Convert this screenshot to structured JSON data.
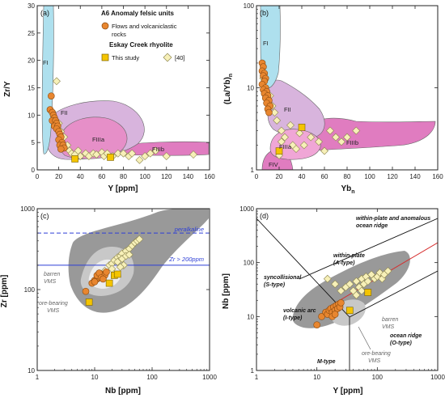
{
  "chart_data": [
    {
      "panel": "(a)",
      "type": "scatter",
      "xlabel": "Y [ppm]",
      "ylabel": "Zr/Y",
      "xlim": [
        0,
        160
      ],
      "ylim": [
        0,
        30
      ],
      "xticks": [
        0,
        20,
        40,
        60,
        80,
        100,
        120,
        140,
        160
      ],
      "yticks": [
        0,
        5,
        10,
        15,
        20,
        25,
        30
      ],
      "fields": [
        {
          "label": "FI",
          "color": "#aee0ee"
        },
        {
          "label": "FII",
          "color": "#d8b4dd"
        },
        {
          "label": "FIIIa",
          "color": "#e68fc8"
        },
        {
          "label": "FIIIb",
          "color": "#e07cc0"
        }
      ],
      "legend": {
        "group1_title": "A6 Anomaly felsic units",
        "group1_item": "Flows and volcaniclastic rocks",
        "group2_title": "Eskay Creek rhyolite",
        "group2_item1": "This study",
        "group2_item2": "[40]"
      },
      "series": [
        {
          "name": "Flows and volcaniclastic rocks",
          "marker": "circle",
          "color": "#e8862f",
          "points": [
            [
              13,
              13.5
            ],
            [
              12,
              11
            ],
            [
              14,
              10.5
            ],
            [
              15,
              10
            ],
            [
              16,
              9.5
            ],
            [
              14,
              9
            ],
            [
              17,
              9
            ],
            [
              18,
              8.5
            ],
            [
              16,
              8
            ],
            [
              19,
              8
            ],
            [
              18,
              7.5
            ],
            [
              20,
              7
            ],
            [
              21,
              6.5
            ],
            [
              22,
              6
            ],
            [
              20,
              5.5
            ],
            [
              23,
              5
            ],
            [
              21,
              4.5
            ],
            [
              24,
              4.5
            ],
            [
              25,
              4
            ],
            [
              22,
              3.8
            ]
          ]
        },
        {
          "name": "This study",
          "marker": "square",
          "color": "#f4c400",
          "points": [
            [
              35,
              2
            ],
            [
              68,
              2.3
            ]
          ]
        },
        {
          "name": "[40]",
          "marker": "diamond",
          "color": "#f7f0b8",
          "points": [
            [
              18,
              16.2
            ],
            [
              20,
              8.5
            ],
            [
              22,
              7
            ],
            [
              25,
              6
            ],
            [
              24,
              4
            ],
            [
              28,
              4.5
            ],
            [
              30,
              3.5
            ],
            [
              32,
              3
            ],
            [
              35,
              2.8
            ],
            [
              38,
              3.5
            ],
            [
              40,
              2.5
            ],
            [
              45,
              3
            ],
            [
              48,
              2.5
            ],
            [
              52,
              3
            ],
            [
              55,
              2.8
            ],
            [
              60,
              3.2
            ],
            [
              62,
              2.5
            ],
            [
              65,
              3
            ],
            [
              70,
              2.5
            ],
            [
              75,
              3
            ],
            [
              80,
              3
            ],
            [
              85,
              2.5
            ],
            [
              88,
              3
            ],
            [
              95,
              1.8
            ],
            [
              100,
              2.5
            ],
            [
              105,
              3
            ],
            [
              110,
              3.5
            ],
            [
              120,
              2.5
            ],
            [
              145,
              2.8
            ]
          ]
        }
      ]
    },
    {
      "panel": "(b)",
      "type": "scatter",
      "xlabel": "Yb",
      "xlabel_sub": "n",
      "ylabel": "(La/Yb)",
      "ylabel_sub": "n",
      "xlim": [
        0,
        160
      ],
      "ylim": [
        1,
        100
      ],
      "yscale": "log",
      "xticks": [
        0,
        20,
        40,
        60,
        80,
        100,
        120,
        140,
        160
      ],
      "yticks": [
        1,
        10,
        100
      ],
      "fields": [
        {
          "label": "FI",
          "color": "#aee0ee"
        },
        {
          "label": "FII",
          "color": "#d8b4dd"
        },
        {
          "label": "FIIIa",
          "color": "#f0a6d6"
        },
        {
          "label": "FIIIb",
          "color": "#e07cc0"
        },
        {
          "label": "FIV",
          "color": "#e07cc0"
        }
      ],
      "series": [
        {
          "name": "Flows and volcaniclastic rocks",
          "marker": "circle",
          "color": "#e8862f",
          "points": [
            [
              5,
              20
            ],
            [
              6,
              18
            ],
            [
              5,
              16
            ],
            [
              7,
              15
            ],
            [
              6,
              14
            ],
            [
              8,
              13
            ],
            [
              7,
              12
            ],
            [
              5,
              11
            ],
            [
              8,
              10
            ],
            [
              6,
              9.5
            ],
            [
              9,
              9
            ],
            [
              7,
              8.5
            ],
            [
              10,
              8
            ],
            [
              8,
              7.5
            ],
            [
              11,
              7
            ],
            [
              9,
              6.5
            ],
            [
              12,
              6
            ],
            [
              10,
              5.5
            ],
            [
              11,
              5
            ]
          ]
        },
        {
          "name": "This study",
          "marker": "square",
          "color": "#f4c400",
          "points": [
            [
              40,
              3.3
            ],
            [
              20,
              1.7
            ]
          ]
        },
        {
          "name": "[40]",
          "marker": "diamond",
          "color": "#f7f0b8",
          "points": [
            [
              6,
              13
            ],
            [
              8,
              10
            ],
            [
              12,
              8
            ],
            [
              14,
              6
            ],
            [
              16,
              5
            ],
            [
              18,
              4
            ],
            [
              22,
              3
            ],
            [
              25,
              2.5
            ],
            [
              30,
              3.5
            ],
            [
              32,
              2
            ],
            [
              35,
              1.8
            ],
            [
              38,
              2.8
            ],
            [
              42,
              2
            ],
            [
              48,
              2.5
            ],
            [
              55,
              2.2
            ],
            [
              60,
              1.7
            ],
            [
              65,
              3
            ],
            [
              70,
              2.5
            ],
            [
              75,
              2.2
            ],
            [
              80,
              2.5
            ],
            [
              88,
              3
            ],
            [
              20,
              1.5
            ],
            [
              22,
              2.2
            ]
          ]
        }
      ]
    },
    {
      "panel": "(c)",
      "type": "scatter",
      "xlabel": "Nb [ppm]",
      "ylabel": "Zr [ppm]",
      "xscale": "log",
      "yscale": "log",
      "xlim": [
        1,
        1000
      ],
      "ylim": [
        10,
        1000
      ],
      "xticks": [
        1,
        10,
        100,
        1000
      ],
      "yticks": [
        10,
        100,
        1000
      ],
      "annotations": {
        "peralkaline": "peralkaline",
        "zr_line": "Zr > 200ppm",
        "barren": "barren VMS",
        "ore": "ore-bearing VMS"
      },
      "reference_lines": [
        {
          "name": "peralkaline",
          "y": 500,
          "style": "dashed",
          "color": "#2e3fd6"
        },
        {
          "name": "Zr > 200ppm",
          "y": 200,
          "style": "solid",
          "color": "#2e3fd6"
        }
      ],
      "series": [
        {
          "name": "Flows and volcaniclastic rocks",
          "marker": "circle",
          "color": "#e8862f",
          "points": [
            [
              7,
              95
            ],
            [
              9,
              120
            ],
            [
              10,
              130
            ],
            [
              11,
              135
            ],
            [
              12,
              140
            ],
            [
              13,
              145
            ],
            [
              11,
              150
            ],
            [
              14,
              155
            ],
            [
              12,
              160
            ],
            [
              15,
              150
            ],
            [
              13,
              140
            ],
            [
              10,
              125
            ],
            [
              16,
              165
            ],
            [
              14,
              135
            ]
          ]
        },
        {
          "name": "This study",
          "marker": "square",
          "color": "#f4c400",
          "points": [
            [
              8,
              70
            ],
            [
              22,
              150
            ],
            [
              18,
              120
            ],
            [
              25,
              155
            ]
          ]
        },
        {
          "name": "[40]",
          "marker": "diamond",
          "color": "#f7f0b8",
          "points": [
            [
              15,
              170
            ],
            [
              18,
              200
            ],
            [
              20,
              210
            ],
            [
              22,
              230
            ],
            [
              25,
              250
            ],
            [
              28,
              260
            ],
            [
              30,
              280
            ],
            [
              35,
              300
            ],
            [
              40,
              320
            ],
            [
              45,
              350
            ],
            [
              50,
              380
            ],
            [
              55,
              400
            ],
            [
              60,
              420
            ],
            [
              20,
              180
            ],
            [
              25,
              220
            ],
            [
              30,
              240
            ],
            [
              32,
              200
            ],
            [
              35,
              260
            ],
            [
              28,
              190
            ],
            [
              40,
              270
            ]
          ]
        }
      ]
    },
    {
      "panel": "(d)",
      "type": "scatter",
      "xlabel": "Y [ppm]",
      "ylabel": "Nb [ppm]",
      "xscale": "log",
      "yscale": "log",
      "xlim": [
        1,
        1000
      ],
      "ylim": [
        1,
        1000
      ],
      "xticks": [
        1,
        10,
        100,
        1000
      ],
      "yticks": [
        1,
        10,
        100,
        1000
      ],
      "annotations": {
        "wpa_ridge": "within-plate and anomalous ocean ridge",
        "wp": "within-plate (A-type)",
        "syn": "syncollisional (S-type)",
        "varc": "volcanic arc (I-type)",
        "oridge": "ocean ridge (O-type)",
        "mtype": "M-type",
        "barren": "barren VMS",
        "ore": "ore-bearing VMS"
      },
      "series": [
        {
          "name": "Flows and volcaniclastic rocks",
          "marker": "circle",
          "color": "#e8862f",
          "points": [
            [
              10,
              7
            ],
            [
              12,
              10
            ],
            [
              14,
              12
            ],
            [
              15,
              11
            ],
            [
              16,
              13
            ],
            [
              17,
              14
            ],
            [
              18,
              12
            ],
            [
              19,
              15
            ],
            [
              20,
              13
            ],
            [
              21,
              16
            ],
            [
              22,
              14
            ],
            [
              23,
              17
            ],
            [
              24,
              15
            ],
            [
              25,
              18
            ],
            [
              18,
              10
            ],
            [
              20,
              11
            ]
          ]
        },
        {
          "name": "This study",
          "marker": "square",
          "color": "#f4c400",
          "points": [
            [
              35,
              13
            ],
            [
              70,
              28
            ]
          ]
        },
        {
          "name": "[40]",
          "marker": "diamond",
          "color": "#f7f0b8",
          "points": [
            [
              15,
              50
            ],
            [
              20,
              40
            ],
            [
              25,
              30
            ],
            [
              30,
              35
            ],
            [
              35,
              40
            ],
            [
              40,
              30
            ],
            [
              45,
              45
            ],
            [
              50,
              35
            ],
            [
              55,
              50
            ],
            [
              60,
              40
            ],
            [
              65,
              55
            ],
            [
              70,
              45
            ],
            [
              80,
              60
            ],
            [
              90,
              50
            ],
            [
              100,
              55
            ],
            [
              110,
              65
            ],
            [
              120,
              50
            ],
            [
              130,
              60
            ],
            [
              150,
              70
            ],
            [
              45,
              25
            ],
            [
              55,
              30
            ]
          ]
        }
      ]
    }
  ]
}
